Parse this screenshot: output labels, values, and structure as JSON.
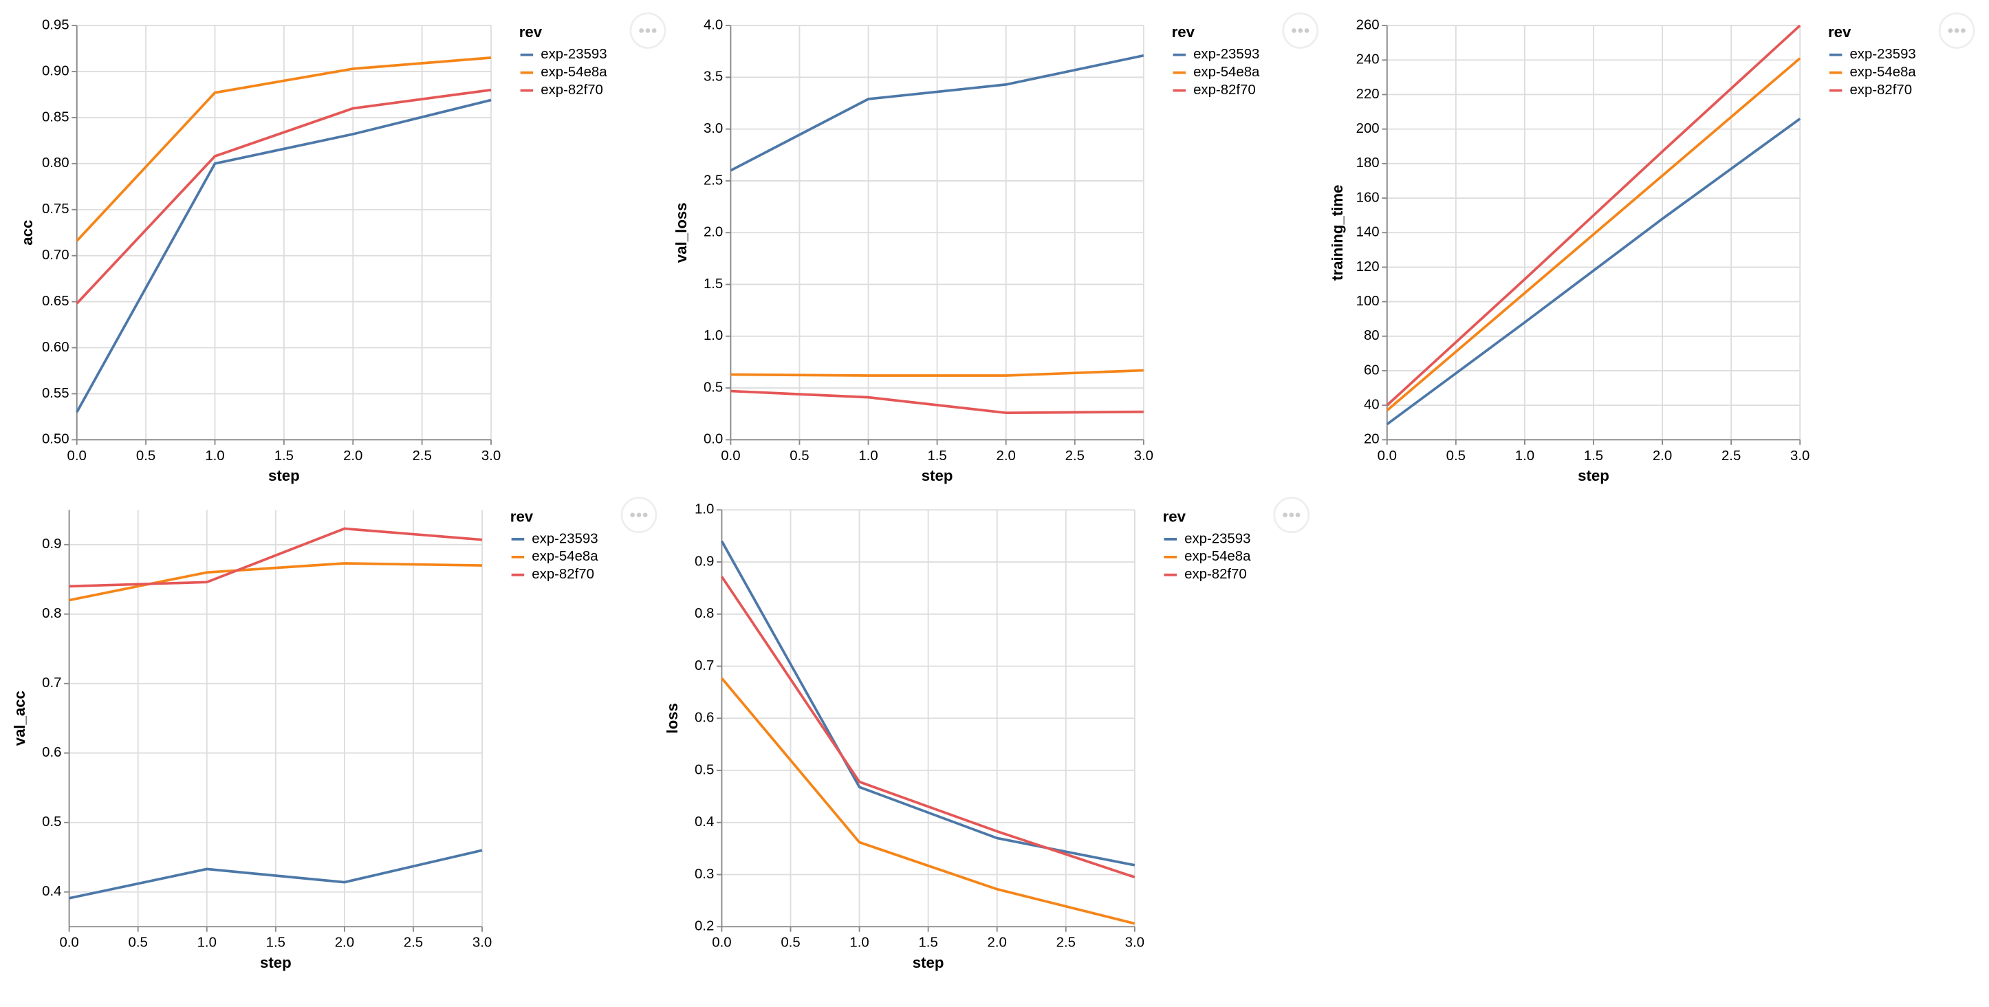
{
  "chart_data": [
    {
      "type": "line",
      "y_label": "acc",
      "x_label": "step",
      "legend_title": "rev",
      "grid": true,
      "x": [
        0,
        1,
        2,
        3
      ],
      "xlim": [
        0,
        3
      ],
      "xticks": [
        {
          "value": 0,
          "label": "0.0"
        },
        {
          "value": 0.5,
          "label": "0.5"
        },
        {
          "value": 1,
          "label": "1.0"
        },
        {
          "value": 1.5,
          "label": "1.5"
        },
        {
          "value": 2,
          "label": "2.0"
        },
        {
          "value": 2.5,
          "label": "2.5"
        },
        {
          "value": 3,
          "label": "3.0"
        }
      ],
      "ylim": [
        0.5,
        0.95
      ],
      "yticks": [
        {
          "value": 0.5,
          "label": "0.50"
        },
        {
          "value": 0.55,
          "label": "0.55"
        },
        {
          "value": 0.6,
          "label": "0.60"
        },
        {
          "value": 0.65,
          "label": "0.65"
        },
        {
          "value": 0.7,
          "label": "0.70"
        },
        {
          "value": 0.75,
          "label": "0.75"
        },
        {
          "value": 0.8,
          "label": "0.80"
        },
        {
          "value": 0.85,
          "label": "0.85"
        },
        {
          "value": 0.9,
          "label": "0.90"
        },
        {
          "value": 0.95,
          "label": "0.95"
        }
      ],
      "series": [
        {
          "name": "exp-23593",
          "color": "#4c78a8",
          "values": [
            0.53,
            0.8,
            0.832,
            0.869
          ]
        },
        {
          "name": "exp-54e8a",
          "color": "#f58518",
          "values": [
            0.716,
            0.877,
            0.903,
            0.915
          ]
        },
        {
          "name": "exp-82f70",
          "color": "#e45756",
          "values": [
            0.648,
            0.808,
            0.86,
            0.88
          ]
        }
      ]
    },
    {
      "type": "line",
      "y_label": "val_loss",
      "x_label": "step",
      "legend_title": "rev",
      "grid": true,
      "x": [
        0,
        1,
        2,
        3
      ],
      "xlim": [
        0,
        3
      ],
      "xticks": [
        {
          "value": 0,
          "label": "0.0"
        },
        {
          "value": 0.5,
          "label": "0.5"
        },
        {
          "value": 1,
          "label": "1.0"
        },
        {
          "value": 1.5,
          "label": "1.5"
        },
        {
          "value": 2,
          "label": "2.0"
        },
        {
          "value": 2.5,
          "label": "2.5"
        },
        {
          "value": 3,
          "label": "3.0"
        }
      ],
      "ylim": [
        0,
        4
      ],
      "yticks": [
        {
          "value": 0,
          "label": "0.0"
        },
        0.5,
        {
          "value": 1,
          "label": "1.0"
        },
        1.5,
        {
          "value": 2,
          "label": "2.0"
        },
        2.5,
        {
          "value": 3,
          "label": "3.0"
        },
        3.5,
        {
          "value": 4,
          "label": "4.0"
        }
      ],
      "series": [
        {
          "name": "exp-23593",
          "color": "#4c78a8",
          "values": [
            2.6,
            3.29,
            3.43,
            3.71
          ]
        },
        {
          "name": "exp-54e8a",
          "color": "#f58518",
          "values": [
            0.63,
            0.62,
            0.62,
            0.67
          ]
        },
        {
          "name": "exp-82f70",
          "color": "#e45756",
          "values": [
            0.47,
            0.41,
            0.26,
            0.27
          ]
        }
      ]
    },
    {
      "type": "line",
      "y_label": "training_time",
      "x_label": "step",
      "legend_title": "rev",
      "grid": true,
      "x": [
        0,
        1,
        2,
        3
      ],
      "xlim": [
        0,
        3
      ],
      "xticks": [
        {
          "value": 0,
          "label": "0.0"
        },
        {
          "value": 0.5,
          "label": "0.5"
        },
        {
          "value": 1,
          "label": "1.0"
        },
        {
          "value": 1.5,
          "label": "1.5"
        },
        {
          "value": 2,
          "label": "2.0"
        },
        {
          "value": 2.5,
          "label": "2.5"
        },
        {
          "value": 3,
          "label": "3.0"
        }
      ],
      "ylim": [
        20,
        260
      ],
      "yticks": [
        20,
        40,
        60,
        80,
        100,
        120,
        140,
        160,
        180,
        200,
        220,
        240,
        260
      ],
      "series": [
        {
          "name": "exp-23593",
          "color": "#4c78a8",
          "values": [
            29,
            88,
            148,
            206
          ]
        },
        {
          "name": "exp-54e8a",
          "color": "#f58518",
          "values": [
            37,
            105,
            173,
            241
          ]
        },
        {
          "name": "exp-82f70",
          "color": "#e45756",
          "values": [
            40,
            113,
            187,
            260
          ]
        }
      ]
    },
    {
      "type": "line",
      "y_label": "val_acc",
      "x_label": "step",
      "legend_title": "rev",
      "grid": true,
      "x": [
        0,
        1,
        2,
        3
      ],
      "xlim": [
        0,
        3
      ],
      "xticks": [
        {
          "value": 0,
          "label": "0.0"
        },
        {
          "value": 0.5,
          "label": "0.5"
        },
        {
          "value": 1,
          "label": "1.0"
        },
        {
          "value": 1.5,
          "label": "1.5"
        },
        {
          "value": 2,
          "label": "2.0"
        },
        {
          "value": 2.5,
          "label": "2.5"
        },
        {
          "value": 3,
          "label": "3.0"
        }
      ],
      "ylim": [
        0.35,
        0.95
      ],
      "yticks": [
        0.4,
        0.5,
        0.6,
        0.7,
        0.8,
        0.9
      ],
      "series": [
        {
          "name": "exp-23593",
          "color": "#4c78a8",
          "values": [
            0.391,
            0.433,
            0.414,
            0.46
          ]
        },
        {
          "name": "exp-54e8a",
          "color": "#f58518",
          "values": [
            0.82,
            0.86,
            0.873,
            0.87
          ]
        },
        {
          "name": "exp-82f70",
          "color": "#e45756",
          "values": [
            0.84,
            0.846,
            0.923,
            0.907
          ]
        }
      ]
    },
    {
      "type": "line",
      "y_label": "loss",
      "x_label": "step",
      "legend_title": "rev",
      "grid": true,
      "x": [
        0,
        1,
        2,
        3
      ],
      "xlim": [
        0,
        3
      ],
      "xticks": [
        {
          "value": 0,
          "label": "0.0"
        },
        {
          "value": 0.5,
          "label": "0.5"
        },
        {
          "value": 1,
          "label": "1.0"
        },
        {
          "value": 1.5,
          "label": "1.5"
        },
        {
          "value": 2,
          "label": "2.0"
        },
        {
          "value": 2.5,
          "label": "2.5"
        },
        {
          "value": 3,
          "label": "3.0"
        }
      ],
      "ylim": [
        0.2,
        1.0
      ],
      "yticks": [
        0.2,
        0.3,
        0.4,
        0.5,
        0.6,
        0.7,
        0.8,
        0.9,
        {
          "value": 1.0,
          "label": "1.0"
        }
      ],
      "series": [
        {
          "name": "exp-23593",
          "color": "#4c78a8",
          "values": [
            0.94,
            0.468,
            0.37,
            0.318
          ]
        },
        {
          "name": "exp-54e8a",
          "color": "#f58518",
          "values": [
            0.677,
            0.362,
            0.272,
            0.206
          ]
        },
        {
          "name": "exp-82f70",
          "color": "#e45756",
          "values": [
            0.872,
            0.478,
            0.383,
            0.295
          ]
        }
      ]
    }
  ]
}
